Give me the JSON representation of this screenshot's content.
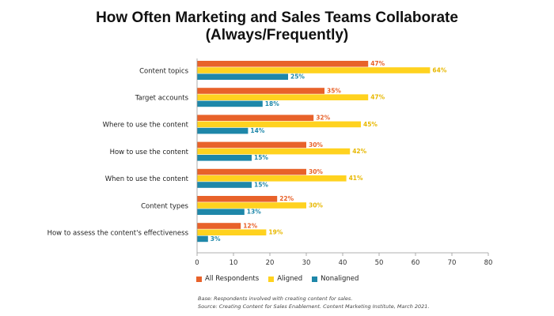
{
  "title_line1": "How Often Marketing and Sales Teams Collaborate",
  "title_line2": "(Always/Frequently)",
  "chart_data": {
    "type": "bar",
    "orientation": "horizontal",
    "title": "How Often Marketing and Sales Teams Collaborate (Always/Frequently)",
    "categories": [
      "Content topics",
      "Target accounts",
      "Where to use the content",
      "How to use the content",
      "When to use the content",
      "Content types",
      "How to assess the content's effectiveness"
    ],
    "series": [
      {
        "name": "All Respondents",
        "color": "#E8622A",
        "label_color": "#E8622A",
        "values": [
          47,
          35,
          32,
          30,
          30,
          22,
          12
        ]
      },
      {
        "name": "Aligned",
        "color": "#FFD21F",
        "label_color": "#E8B800",
        "values": [
          64,
          47,
          45,
          42,
          41,
          30,
          19
        ]
      },
      {
        "name": "Nonaligned",
        "color": "#1E87A9",
        "label_color": "#1E87A9",
        "values": [
          25,
          18,
          14,
          15,
          15,
          13,
          3
        ]
      }
    ],
    "value_suffix": "%",
    "xlim": [
      0,
      80
    ],
    "xticks": [
      0,
      10,
      20,
      30,
      40,
      50,
      60,
      70,
      80
    ],
    "grid": false,
    "legend_position": "bottom-left"
  },
  "notes": {
    "base": "Base: Respondents involved with creating content for sales.",
    "source": "Source: Creating Content for Sales Enablement. Content Marketing Institute, March 2021."
  }
}
